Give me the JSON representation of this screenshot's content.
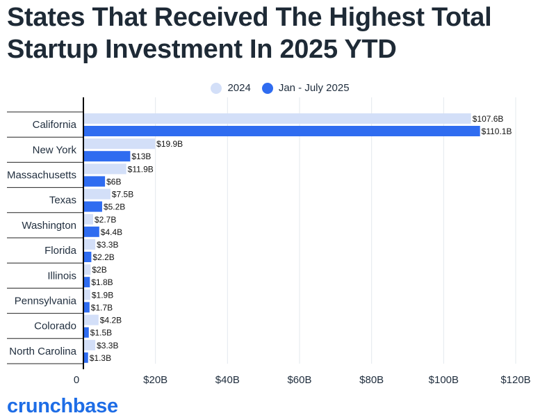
{
  "title_line1": "States That Received The Highest Total",
  "title_line2": "Startup Investment In 2025 YTD",
  "brand": "crunchbase",
  "colors": {
    "series_2024": "#d3dff8",
    "series_2025": "#2f6cf0",
    "grid": "#e3e8ee",
    "axis": "#000000"
  },
  "chart_data": {
    "type": "bar",
    "orientation": "horizontal",
    "categories": [
      "California",
      "New York",
      "Massachusetts",
      "Texas",
      "Washington",
      "Florida",
      "Illinois",
      "Pennsylvania",
      "Colorado",
      "North Carolina"
    ],
    "series": [
      {
        "name": "2024",
        "values": [
          107.6,
          19.9,
          11.9,
          7.5,
          2.7,
          3.3,
          2,
          1.9,
          4.2,
          3.3
        ],
        "labels": [
          "$107.6B",
          "$19.9B",
          "$11.9B",
          "$7.5B",
          "$2.7B",
          "$3.3B",
          "$2B",
          "$1.9B",
          "$4.2B",
          "$3.3B"
        ]
      },
      {
        "name": "Jan - July 2025",
        "values": [
          110.1,
          13,
          6,
          5.2,
          4.4,
          2.2,
          1.8,
          1.7,
          1.5,
          1.3
        ],
        "labels": [
          "$110.1B",
          "$13B",
          "$6B",
          "$5.2B",
          "$4.4B",
          "$2.2B",
          "$1.8B",
          "$1.7B",
          "$1.5B",
          "$1.3B"
        ]
      }
    ],
    "xlim": [
      0,
      120
    ],
    "xticks": [
      0,
      20,
      40,
      60,
      80,
      100,
      120
    ],
    "xtick_labels": [
      "0",
      "$20B",
      "$40B",
      "$60B",
      "$80B",
      "$100B",
      "$120B"
    ],
    "legend_position": "top-center",
    "grid": true
  }
}
